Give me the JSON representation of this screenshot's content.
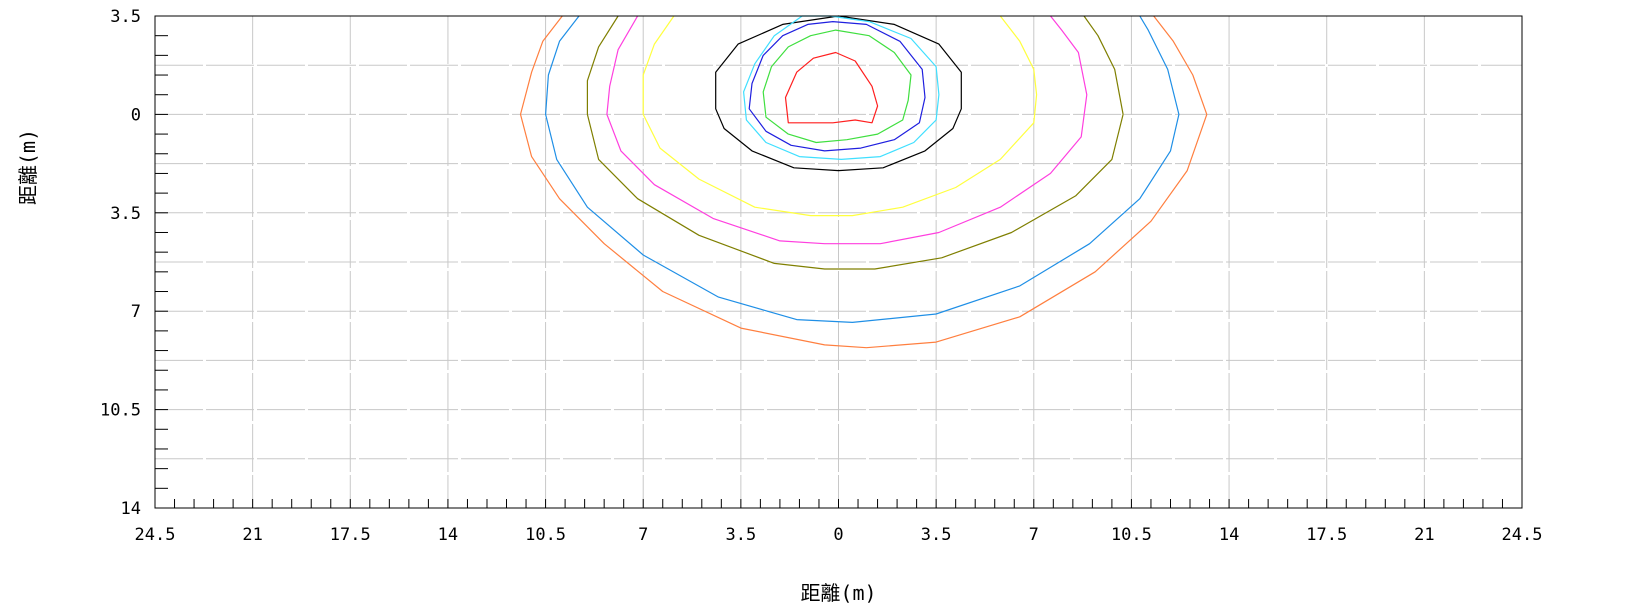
{
  "chart_data": {
    "type": "contour",
    "xlabel": "距離(m)",
    "ylabel": "距離(m)",
    "xlim": [
      -24.5,
      24.5
    ],
    "ylim": [
      -3.5,
      14
    ],
    "y_direction": "down",
    "grid": true,
    "legend": "none",
    "x_ticks": [
      {
        "value": -24.5,
        "label": "24.5"
      },
      {
        "value": -21,
        "label": "21"
      },
      {
        "value": -17.5,
        "label": "17.5"
      },
      {
        "value": -14,
        "label": "14"
      },
      {
        "value": -10.5,
        "label": "10.5"
      },
      {
        "value": -7,
        "label": "7"
      },
      {
        "value": -3.5,
        "label": "3.5"
      },
      {
        "value": 0,
        "label": "0"
      },
      {
        "value": 3.5,
        "label": "3.5"
      },
      {
        "value": 7,
        "label": "7"
      },
      {
        "value": 10.5,
        "label": "10.5"
      },
      {
        "value": 14,
        "label": "14"
      },
      {
        "value": 17.5,
        "label": "17.5"
      },
      {
        "value": 21,
        "label": "21"
      },
      {
        "value": 24.5,
        "label": "24.5"
      }
    ],
    "y_ticks": [
      {
        "value": -3.5,
        "label": "3.5"
      },
      {
        "value": 0,
        "label": "0"
      },
      {
        "value": 3.5,
        "label": "3.5"
      },
      {
        "value": 7,
        "label": "7"
      },
      {
        "value": 10.5,
        "label": "10.5"
      },
      {
        "value": 14,
        "label": "14"
      }
    ],
    "x_minor_step": 0.7,
    "y_minor_step": 0.7,
    "contours": [
      {
        "color": "#ff7f3f",
        "closed": false,
        "points": [
          [
            -9.9,
            -3.5
          ],
          [
            -10.6,
            -2.6
          ],
          [
            -11.0,
            -1.5
          ],
          [
            -11.4,
            0
          ],
          [
            -11.0,
            1.5
          ],
          [
            -10.0,
            3.0
          ],
          [
            -8.4,
            4.6
          ],
          [
            -6.3,
            6.3
          ],
          [
            -3.5,
            7.6
          ],
          [
            -0.5,
            8.2
          ],
          [
            1.0,
            8.3
          ],
          [
            3.5,
            8.1
          ],
          [
            6.5,
            7.2
          ],
          [
            9.2,
            5.6
          ],
          [
            11.2,
            3.8
          ],
          [
            12.5,
            2.0
          ],
          [
            13.2,
            0
          ],
          [
            12.7,
            -1.4
          ],
          [
            12.0,
            -2.6
          ],
          [
            11.3,
            -3.5
          ]
        ]
      },
      {
        "color": "#1f8fe6",
        "closed": false,
        "points": [
          [
            -9.3,
            -3.5
          ],
          [
            -10.0,
            -2.6
          ],
          [
            -10.4,
            -1.4
          ],
          [
            -10.5,
            0
          ],
          [
            -10.1,
            1.6
          ],
          [
            -9.0,
            3.3
          ],
          [
            -7.0,
            5.0
          ],
          [
            -4.3,
            6.5
          ],
          [
            -1.5,
            7.3
          ],
          [
            0.5,
            7.4
          ],
          [
            3.5,
            7.1
          ],
          [
            6.5,
            6.1
          ],
          [
            9.0,
            4.6
          ],
          [
            10.8,
            3.0
          ],
          [
            11.9,
            1.3
          ],
          [
            12.2,
            0
          ],
          [
            11.8,
            -1.6
          ],
          [
            11.1,
            -3.0
          ],
          [
            10.8,
            -3.5
          ]
        ]
      },
      {
        "color": "#7f7f00",
        "closed": false,
        "points": [
          [
            -7.9,
            -3.5
          ],
          [
            -8.6,
            -2.4
          ],
          [
            -9.0,
            -1.2
          ],
          [
            -9.0,
            0
          ],
          [
            -8.6,
            1.6
          ],
          [
            -7.2,
            3.0
          ],
          [
            -5.0,
            4.3
          ],
          [
            -2.3,
            5.3
          ],
          [
            -0.5,
            5.5
          ],
          [
            1.3,
            5.5
          ],
          [
            3.7,
            5.1
          ],
          [
            6.2,
            4.2
          ],
          [
            8.5,
            2.9
          ],
          [
            9.8,
            1.6
          ],
          [
            10.2,
            0
          ],
          [
            9.9,
            -1.6
          ],
          [
            9.3,
            -2.8
          ],
          [
            8.8,
            -3.5
          ]
        ]
      },
      {
        "color": "#ff3fdf",
        "closed": false,
        "points": [
          [
            -7.2,
            -3.5
          ],
          [
            -7.9,
            -2.3
          ],
          [
            -8.2,
            -1.0
          ],
          [
            -8.3,
            0
          ],
          [
            -7.8,
            1.3
          ],
          [
            -6.6,
            2.5
          ],
          [
            -4.5,
            3.7
          ],
          [
            -2.1,
            4.5
          ],
          [
            -0.5,
            4.6
          ],
          [
            1.5,
            4.6
          ],
          [
            3.6,
            4.2
          ],
          [
            5.8,
            3.3
          ],
          [
            7.6,
            2.1
          ],
          [
            8.7,
            0.8
          ],
          [
            8.9,
            -0.7
          ],
          [
            8.6,
            -2.2
          ],
          [
            8.0,
            -3.0
          ],
          [
            7.6,
            -3.5
          ]
        ]
      },
      {
        "color": "#ffff3f",
        "closed": false,
        "points": [
          [
            -5.9,
            -3.5
          ],
          [
            -6.6,
            -2.5
          ],
          [
            -7.0,
            -1.4
          ],
          [
            -7.0,
            0
          ],
          [
            -6.4,
            1.2
          ],
          [
            -5.0,
            2.3
          ],
          [
            -3.0,
            3.3
          ],
          [
            -1.0,
            3.6
          ],
          [
            0.5,
            3.6
          ],
          [
            2.3,
            3.3
          ],
          [
            4.2,
            2.6
          ],
          [
            5.8,
            1.6
          ],
          [
            7.0,
            0.3
          ],
          [
            7.1,
            -0.7
          ],
          [
            7.0,
            -1.6
          ],
          [
            6.5,
            -2.6
          ],
          [
            5.8,
            -3.5
          ]
        ]
      },
      {
        "color": "#000000",
        "closed": true,
        "points": [
          [
            0,
            -3.5
          ],
          [
            2.0,
            -3.2
          ],
          [
            3.6,
            -2.5
          ],
          [
            4.4,
            -1.5
          ],
          [
            4.4,
            -0.2
          ],
          [
            4.1,
            0.5
          ],
          [
            3.1,
            1.3
          ],
          [
            1.6,
            1.9
          ],
          [
            0,
            2.0
          ],
          [
            -1.6,
            1.9
          ],
          [
            -3.1,
            1.3
          ],
          [
            -4.1,
            0.5
          ],
          [
            -4.4,
            -0.2
          ],
          [
            -4.4,
            -1.5
          ],
          [
            -3.6,
            -2.5
          ],
          [
            -2.0,
            -3.2
          ]
        ]
      },
      {
        "color": "#3fdfff",
        "closed": true,
        "points": [
          [
            -1.3,
            -3.5
          ],
          [
            -0.3,
            -3.5
          ],
          [
            1.1,
            -3.3
          ],
          [
            2.6,
            -2.7
          ],
          [
            3.5,
            -1.7
          ],
          [
            3.6,
            -0.7
          ],
          [
            3.5,
            0.2
          ],
          [
            2.7,
            1.0
          ],
          [
            1.5,
            1.5
          ],
          [
            0.1,
            1.6
          ],
          [
            -1.4,
            1.5
          ],
          [
            -2.6,
            1.0
          ],
          [
            -3.3,
            0.2
          ],
          [
            -3.4,
            -0.8
          ],
          [
            -3.0,
            -1.8
          ],
          [
            -2.3,
            -2.8
          ]
        ]
      },
      {
        "color": "#3fdf3f",
        "closed": true,
        "points": [
          [
            -0.1,
            -3.0
          ],
          [
            1.1,
            -2.8
          ],
          [
            2.0,
            -2.2
          ],
          [
            2.6,
            -1.4
          ],
          [
            2.5,
            -0.5
          ],
          [
            2.3,
            0.2
          ],
          [
            1.4,
            0.7
          ],
          [
            0.3,
            0.9
          ],
          [
            -0.8,
            1.0
          ],
          [
            -1.8,
            0.7
          ],
          [
            -2.6,
            0.1
          ],
          [
            -2.7,
            -0.8
          ],
          [
            -2.4,
            -1.7
          ],
          [
            -1.8,
            -2.4
          ],
          [
            -1.0,
            -2.8
          ]
        ]
      },
      {
        "color": "#1f1fdf",
        "closed": true,
        "points": [
          [
            -0.2,
            -3.3
          ],
          [
            1.0,
            -3.2
          ],
          [
            2.2,
            -2.6
          ],
          [
            3.0,
            -1.6
          ],
          [
            3.1,
            -0.6
          ],
          [
            2.9,
            0.3
          ],
          [
            2.0,
            0.9
          ],
          [
            0.8,
            1.2
          ],
          [
            -0.5,
            1.3
          ],
          [
            -1.7,
            1.1
          ],
          [
            -2.6,
            0.6
          ],
          [
            -3.2,
            -0.2
          ],
          [
            -3.1,
            -1.1
          ],
          [
            -2.7,
            -2.1
          ],
          [
            -2.0,
            -2.8
          ],
          [
            -1.1,
            -3.2
          ]
        ]
      },
      {
        "color": "#ff1f1f",
        "closed": true,
        "points": [
          [
            -0.1,
            -2.2
          ],
          [
            0.6,
            -1.9
          ],
          [
            1.2,
            -1.0
          ],
          [
            1.4,
            -0.3
          ],
          [
            1.2,
            0.3
          ],
          [
            0.6,
            0.2
          ],
          [
            -0.2,
            0.3
          ],
          [
            -1.0,
            0.3
          ],
          [
            -1.8,
            0.3
          ],
          [
            -1.9,
            -0.6
          ],
          [
            -1.5,
            -1.5
          ],
          [
            -0.9,
            -2.0
          ]
        ]
      }
    ]
  }
}
